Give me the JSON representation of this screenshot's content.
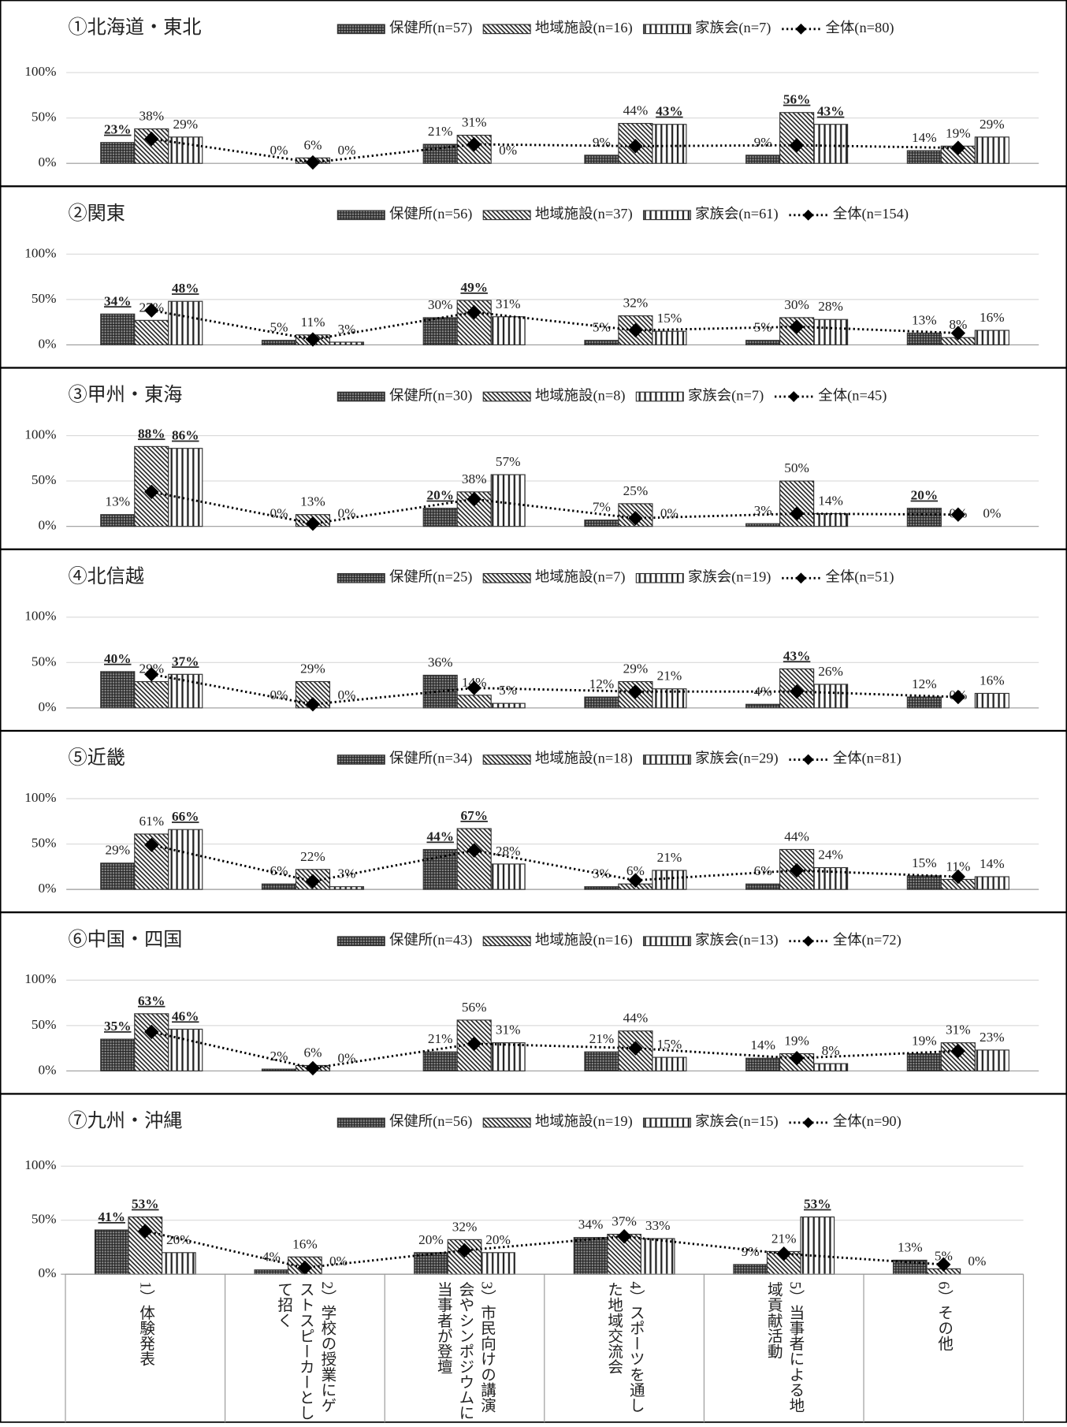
{
  "chart_data": [
    {
      "type": "bar",
      "title": "①北海道・東北",
      "ylim": [
        0,
        100
      ],
      "yticks": [
        {
          "value": 0,
          "label": "0%"
        },
        {
          "value": 50,
          "label": "50%"
        },
        {
          "value": 100,
          "label": "100%"
        }
      ],
      "grid": true,
      "series": [
        {
          "name": "保健所(n=57)",
          "pattern": "crosshatch",
          "values": [
            23,
            0,
            21,
            9,
            9,
            14
          ],
          "value_labels": [
            "23%",
            "0%",
            "21%",
            "9%",
            "9%",
            "14%"
          ],
          "underline": [
            true,
            false,
            false,
            false,
            false,
            false
          ]
        },
        {
          "name": "地域施設(n=16)",
          "pattern": "diagonal",
          "values": [
            38,
            6,
            31,
            44,
            56,
            19
          ],
          "value_labels": [
            "38%",
            "6%",
            "31%",
            "44%",
            "56%",
            "19%"
          ],
          "underline": [
            false,
            false,
            false,
            false,
            true,
            false
          ]
        },
        {
          "name": "家族会(n=7)",
          "pattern": "vertical",
          "values": [
            29,
            0,
            0,
            43,
            43,
            29
          ],
          "value_labels": [
            "29%",
            "0%",
            "0%",
            "43%",
            "43%",
            "29%"
          ],
          "underline": [
            false,
            false,
            false,
            true,
            true,
            false
          ]
        },
        {
          "name": "全体(n=80)",
          "type": "line",
          "color": "#000",
          "values": [
            27,
            1,
            21,
            19,
            20,
            17
          ]
        }
      ]
    },
    {
      "type": "bar",
      "title": "②関東",
      "ylim": [
        0,
        100
      ],
      "yticks": [
        {
          "value": 0,
          "label": "0%"
        },
        {
          "value": 50,
          "label": "50%"
        },
        {
          "value": 100,
          "label": "100%"
        }
      ],
      "grid": true,
      "series": [
        {
          "name": "保健所(n=56)",
          "pattern": "crosshatch",
          "values": [
            34,
            5,
            30,
            5,
            5,
            13
          ],
          "value_labels": [
            "34%",
            "5%",
            "30%",
            "5%",
            "5%",
            "13%"
          ],
          "underline": [
            true,
            false,
            false,
            false,
            false,
            false
          ]
        },
        {
          "name": "地域施設(n=37)",
          "pattern": "diagonal",
          "values": [
            27,
            11,
            49,
            32,
            30,
            8
          ],
          "value_labels": [
            "27%",
            "11%",
            "49%",
            "32%",
            "30%",
            "8%"
          ],
          "underline": [
            false,
            false,
            true,
            false,
            false,
            false
          ]
        },
        {
          "name": "家族会(n=61)",
          "pattern": "vertical",
          "values": [
            48,
            3,
            31,
            15,
            28,
            16
          ],
          "value_labels": [
            "48%",
            "3%",
            "31%",
            "15%",
            "28%",
            "16%"
          ],
          "underline": [
            true,
            false,
            false,
            false,
            false,
            false
          ]
        },
        {
          "name": "全体(n=154)",
          "type": "line",
          "color": "#000",
          "values": [
            38,
            6,
            36,
            16,
            20,
            13
          ]
        }
      ]
    },
    {
      "type": "bar",
      "title": "③甲州・東海",
      "ylim": [
        0,
        100
      ],
      "yticks": [
        {
          "value": 0,
          "label": "0%"
        },
        {
          "value": 50,
          "label": "50%"
        },
        {
          "value": 100,
          "label": "100%"
        }
      ],
      "grid": true,
      "series": [
        {
          "name": "保健所(n=30)",
          "pattern": "crosshatch",
          "values": [
            13,
            0,
            20,
            7,
            3,
            20
          ],
          "value_labels": [
            "13%",
            "0%",
            "20%",
            "7%",
            "3%",
            "20%"
          ],
          "underline": [
            false,
            false,
            true,
            false,
            false,
            true
          ]
        },
        {
          "name": "地域施設(n=8)",
          "pattern": "diagonal",
          "values": [
            88,
            13,
            38,
            25,
            50,
            0
          ],
          "value_labels": [
            "88%",
            "13%",
            "38%",
            "25%",
            "50%",
            "0%"
          ],
          "underline": [
            true,
            false,
            false,
            false,
            false,
            false
          ]
        },
        {
          "name": "家族会(n=7)",
          "pattern": "vertical",
          "values": [
            86,
            0,
            57,
            0,
            14,
            0
          ],
          "value_labels": [
            "86%",
            "0%",
            "57%",
            "0%",
            "14%",
            "0%"
          ],
          "underline": [
            true,
            false,
            false,
            false,
            false,
            false
          ]
        },
        {
          "name": "全体(n=45)",
          "type": "line",
          "color": "#000",
          "values": [
            38,
            3,
            30,
            9,
            14,
            13
          ]
        }
      ]
    },
    {
      "type": "bar",
      "title": "④北信越",
      "ylim": [
        0,
        100
      ],
      "yticks": [
        {
          "value": 0,
          "label": "0%"
        },
        {
          "value": 50,
          "label": "50%"
        },
        {
          "value": 100,
          "label": "100%"
        }
      ],
      "grid": true,
      "series": [
        {
          "name": "保健所(n=25)",
          "pattern": "crosshatch",
          "values": [
            40,
            0,
            36,
            12,
            4,
            12
          ],
          "value_labels": [
            "40%",
            "0%",
            "36%",
            "12%",
            "4%",
            "12%"
          ],
          "underline": [
            true,
            false,
            false,
            false,
            false,
            false
          ]
        },
        {
          "name": "地域施設(n=7)",
          "pattern": "diagonal",
          "values": [
            29,
            29,
            14,
            29,
            43,
            0
          ],
          "value_labels": [
            "29%",
            "29%",
            "14%",
            "29%",
            "43%",
            "0%"
          ],
          "underline": [
            false,
            false,
            false,
            false,
            true,
            false
          ]
        },
        {
          "name": "家族会(n=19)",
          "pattern": "vertical",
          "values": [
            37,
            0,
            5,
            21,
            26,
            16
          ],
          "value_labels": [
            "37%",
            "0%",
            "5%",
            "21%",
            "26%",
            "16%"
          ],
          "underline": [
            true,
            false,
            false,
            false,
            false,
            false
          ]
        },
        {
          "name": "全体(n=51)",
          "type": "line",
          "color": "#000",
          "values": [
            37,
            4,
            22,
            18,
            18,
            12
          ]
        }
      ]
    },
    {
      "type": "bar",
      "title": "⑤近畿",
      "ylim": [
        0,
        100
      ],
      "yticks": [
        {
          "value": 0,
          "label": "0%"
        },
        {
          "value": 50,
          "label": "50%"
        },
        {
          "value": 100,
          "label": "100%"
        }
      ],
      "grid": true,
      "series": [
        {
          "name": "保健所(n=34)",
          "pattern": "crosshatch",
          "values": [
            29,
            6,
            44,
            3,
            6,
            15
          ],
          "value_labels": [
            "29%",
            "6%",
            "44%",
            "3%",
            "6%",
            "15%"
          ],
          "underline": [
            false,
            false,
            true,
            false,
            false,
            false
          ]
        },
        {
          "name": "地域施設(n=18)",
          "pattern": "diagonal",
          "values": [
            61,
            22,
            67,
            6,
            44,
            11
          ],
          "value_labels": [
            "61%",
            "22%",
            "67%",
            "6%",
            "44%",
            "11%"
          ],
          "underline": [
            false,
            false,
            true,
            false,
            false,
            false
          ]
        },
        {
          "name": "家族会(n=29)",
          "pattern": "vertical",
          "values": [
            66,
            3,
            28,
            21,
            24,
            14
          ],
          "value_labels": [
            "66%",
            "3%",
            "28%",
            "21%",
            "24%",
            "14%"
          ],
          "underline": [
            true,
            false,
            false,
            false,
            false,
            false
          ]
        },
        {
          "name": "全体(n=81)",
          "type": "line",
          "color": "#000",
          "values": [
            49,
            9,
            43,
            10,
            21,
            14
          ]
        }
      ]
    },
    {
      "type": "bar",
      "title": "⑥中国・四国",
      "ylim": [
        0,
        100
      ],
      "yticks": [
        {
          "value": 0,
          "label": "0%"
        },
        {
          "value": 50,
          "label": "50%"
        },
        {
          "value": 100,
          "label": "100%"
        }
      ],
      "grid": true,
      "series": [
        {
          "name": "保健所(n=43)",
          "pattern": "crosshatch",
          "values": [
            35,
            2,
            21,
            21,
            14,
            19
          ],
          "value_labels": [
            "35%",
            "2%",
            "21%",
            "21%",
            "14%",
            "19%"
          ],
          "underline": [
            true,
            false,
            false,
            false,
            false,
            false
          ]
        },
        {
          "name": "地域施設(n=16)",
          "pattern": "diagonal",
          "values": [
            63,
            6,
            56,
            44,
            19,
            31
          ],
          "value_labels": [
            "63%",
            "6%",
            "56%",
            "44%",
            "19%",
            "31%"
          ],
          "underline": [
            true,
            false,
            false,
            false,
            false,
            false
          ]
        },
        {
          "name": "家族会(n=13)",
          "pattern": "vertical",
          "values": [
            46,
            0,
            31,
            15,
            8,
            23
          ],
          "value_labels": [
            "46%",
            "0%",
            "31%",
            "15%",
            "8%",
            "23%"
          ],
          "underline": [
            true,
            false,
            false,
            false,
            false,
            false
          ]
        },
        {
          "name": "全体(n=72)",
          "type": "line",
          "color": "#000",
          "values": [
            43,
            3,
            30,
            25,
            14,
            22
          ]
        }
      ]
    },
    {
      "type": "bar",
      "title": "⑦九州・沖縄",
      "ylim": [
        0,
        100
      ],
      "yticks": [
        {
          "value": 0,
          "label": "0%"
        },
        {
          "value": 50,
          "label": "50%"
        },
        {
          "value": 100,
          "label": "100%"
        }
      ],
      "grid": true,
      "categories": [
        "1）体験発表",
        "2）学校の授業にゲストスピーカーとして招く",
        "3）市民向けの講演会やシンポジウムに当事者が登壇",
        "4）スポーツを通した地域交流会",
        "5）当事者による地域貢献活動",
        "6）その他"
      ],
      "series": [
        {
          "name": "保健所(n=56)",
          "pattern": "crosshatch",
          "values": [
            41,
            4,
            20,
            34,
            9,
            13
          ],
          "value_labels": [
            "41%",
            "4%",
            "20%",
            "34%",
            "9%",
            "13%"
          ],
          "underline": [
            true,
            false,
            false,
            false,
            false,
            false
          ]
        },
        {
          "name": "地域施設(n=19)",
          "pattern": "diagonal",
          "values": [
            53,
            16,
            32,
            37,
            21,
            5
          ],
          "value_labels": [
            "53%",
            "16%",
            "32%",
            "37%",
            "21%",
            "5%"
          ],
          "underline": [
            true,
            false,
            false,
            false,
            false,
            false
          ]
        },
        {
          "name": "家族会(n=15)",
          "pattern": "vertical",
          "values": [
            20,
            0,
            20,
            33,
            53,
            0
          ],
          "value_labels": [
            "20%",
            "0%",
            "20%",
            "33%",
            "53%",
            "0%"
          ],
          "underline": [
            false,
            false,
            false,
            false,
            true,
            false
          ]
        },
        {
          "name": "全体(n=90)",
          "type": "line",
          "color": "#000",
          "values": [
            40,
            6,
            22,
            35,
            19,
            9
          ]
        }
      ]
    }
  ]
}
